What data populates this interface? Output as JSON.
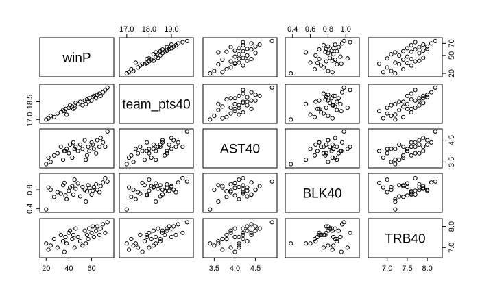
{
  "chart_data": {
    "type": "scatter-matrix",
    "title": "",
    "variables": [
      {
        "name": "winP",
        "range": [
          17,
          77
        ],
        "ticks": [
          {
            "v": 20,
            "label": "20"
          },
          {
            "v": 40,
            "label": "40"
          },
          {
            "v": 60,
            "label": "60"
          }
        ],
        "alt_ticks": [
          {
            "v": 20,
            "label": "20"
          },
          {
            "v": 50,
            "label": "50"
          },
          {
            "v": 70,
            "label": "70"
          }
        ]
      },
      {
        "name": "team_pts40",
        "range": [
          16.8,
          19.85
        ],
        "ticks": [
          {
            "v": 17.0,
            "label": "17.0"
          },
          {
            "v": 18.0,
            "label": "18.0"
          },
          {
            "v": 19.0,
            "label": "19.0"
          }
        ],
        "alt_ticks": [
          {
            "v": 17.0,
            "label": "17.0"
          },
          {
            "v": 18.5,
            "label": "18.5"
          }
        ]
      },
      {
        "name": "AST40",
        "range": [
          3.3,
          4.95
        ],
        "ticks": [
          {
            "v": 3.5,
            "label": "3.5"
          },
          {
            "v": 4.0,
            "label": "4.0"
          },
          {
            "v": 4.5,
            "label": "4.5"
          }
        ],
        "alt_ticks": [
          {
            "v": 3.5,
            "label": "3.5"
          },
          {
            "v": 4.5,
            "label": "4.5"
          }
        ]
      },
      {
        "name": "BLK40",
        "range": [
          0.35,
          1.12
        ],
        "ticks": [
          {
            "v": 0.4,
            "label": "0.4"
          },
          {
            "v": 0.6,
            "label": "0.6"
          },
          {
            "v": 0.8,
            "label": "0.8"
          },
          {
            "v": 1.0,
            "label": "1.0"
          }
        ],
        "alt_ticks": [
          {
            "v": 0.4,
            "label": "0.4"
          },
          {
            "v": 0.8,
            "label": "0.8"
          }
        ]
      },
      {
        "name": "TRB40",
        "range": [
          6.6,
          8.3
        ],
        "ticks": [
          {
            "v": 7.0,
            "label": "7.0"
          },
          {
            "v": 7.5,
            "label": "7.5"
          },
          {
            "v": 8.0,
            "label": "8.0"
          }
        ],
        "alt_ticks": [
          {
            "v": 7.0,
            "label": "7.0"
          },
          {
            "v": 8.0,
            "label": "8.0"
          }
        ]
      }
    ],
    "observations": [
      [
        20,
        17.0,
        3.4,
        0.38,
        7.2
      ],
      [
        22,
        17.1,
        3.7,
        0.85,
        6.9
      ],
      [
        24,
        17.3,
        3.5,
        0.8,
        7.1
      ],
      [
        27,
        17.2,
        3.8,
        0.65,
        7.4
      ],
      [
        30,
        17.5,
        3.9,
        0.75,
        7.0
      ],
      [
        33,
        17.6,
        4.2,
        0.72,
        7.6
      ],
      [
        35,
        17.8,
        3.6,
        0.9,
        7.3
      ],
      [
        37,
        17.9,
        4.0,
        0.68,
        7.5
      ],
      [
        38,
        17.4,
        4.1,
        0.6,
        7.2
      ],
      [
        40,
        18.0,
        3.9,
        0.78,
        7.7
      ],
      [
        41,
        18.2,
        4.3,
        0.85,
        7.8
      ],
      [
        43,
        18.1,
        3.7,
        0.88,
        7.4
      ],
      [
        44,
        17.9,
        4.4,
        0.7,
        7.6
      ],
      [
        46,
        18.4,
        4.2,
        0.82,
        7.9
      ],
      [
        48,
        18.3,
        4.0,
        0.94,
        7.5
      ],
      [
        50,
        18.5,
        4.3,
        0.66,
        7.3
      ],
      [
        52,
        18.2,
        4.1,
        0.86,
        7.1
      ],
      [
        54,
        18.6,
        4.5,
        0.8,
        7.8
      ],
      [
        56,
        18.7,
        3.8,
        0.77,
        7.6
      ],
      [
        57,
        18.5,
        4.2,
        0.9,
        7.4
      ],
      [
        58,
        18.8,
        4.0,
        0.84,
        7.9
      ],
      [
        60,
        18.6,
        4.4,
        0.7,
        7.7
      ],
      [
        61,
        18.9,
        4.3,
        0.78,
        8.0
      ],
      [
        62,
        19.0,
        4.1,
        0.86,
        7.5
      ],
      [
        64,
        18.8,
        3.9,
        0.92,
        7.8
      ],
      [
        65,
        19.1,
        4.5,
        0.8,
        8.0
      ],
      [
        67,
        19.2,
        4.2,
        0.75,
        7.6
      ],
      [
        68,
        19.0,
        4.6,
        0.88,
        7.9
      ],
      [
        70,
        19.3,
        4.4,
        0.96,
        8.1
      ],
      [
        72,
        19.5,
        4.2,
        1.05,
        7.7
      ],
      [
        74,
        19.7,
        4.9,
        0.98,
        8.2
      ],
      [
        55,
        18.3,
        3.6,
        0.55,
        7.2
      ],
      [
        45,
        18.0,
        4.1,
        1.02,
        7.0
      ],
      [
        36,
        17.7,
        4.0,
        0.95,
        6.8
      ]
    ]
  }
}
